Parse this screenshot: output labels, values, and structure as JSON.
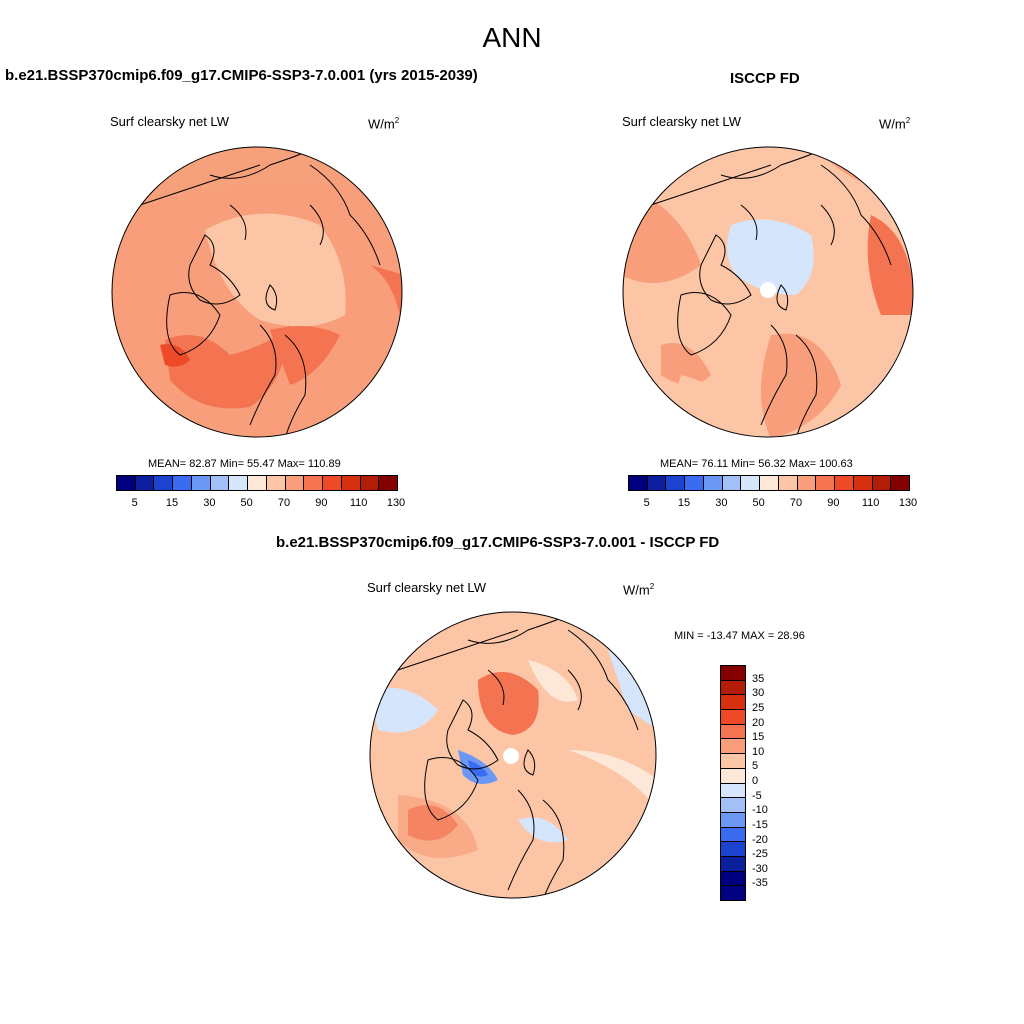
{
  "figure_title": "ANN",
  "panels": {
    "left": {
      "title": "b.e21.BSSP370cmip6.f09_g17.CMIP6-SSP3-7.0.001 (yrs 2015-2039)",
      "variable": "Surf clearsky net LW",
      "units_base": "W/m",
      "units_exp": "2",
      "stats": "MEAN=  82.87  Min=  55.47  Max= 110.89"
    },
    "right": {
      "title": "ISCCP FD",
      "variable": "Surf clearsky net LW",
      "units_base": "W/m",
      "units_exp": "2",
      "stats": "MEAN=  76.11  Min=  56.32  Max= 100.63"
    },
    "diff": {
      "title": "b.e21.BSSP370cmip6.f09_g17.CMIP6-SSP3-7.0.001 - ISCCP FD",
      "variable": "Surf clearsky net LW",
      "units_base": "W/m",
      "units_exp": "2",
      "stats": "MIN = -13.47 MAX =  28.96"
    }
  },
  "colorbars": {
    "abs_ticks": [
      "5",
      "15",
      "30",
      "50",
      "70",
      "90",
      "110",
      "130"
    ],
    "abs_colors": [
      "#00007f",
      "#0b1f9e",
      "#1c43cf",
      "#3a6cf2",
      "#6c98f5",
      "#a3bff7",
      "#d5e5fb",
      "#fde8d8",
      "#fbc5a6",
      "#f89e7a",
      "#f47452",
      "#ef4a28",
      "#d6300f",
      "#b31d07",
      "#840000"
    ],
    "diff_ticks": [
      "35",
      "30",
      "25",
      "20",
      "15",
      "10",
      "5",
      "0",
      "-5",
      "-10",
      "-15",
      "-20",
      "-25",
      "-30",
      "-35"
    ],
    "diff_colors": [
      "#840000",
      "#b31d07",
      "#d6300f",
      "#ef4a28",
      "#f47452",
      "#f89e7a",
      "#fbc5a6",
      "#fde8d8",
      "#d5e5fb",
      "#a3bff7",
      "#6c98f5",
      "#3a6cf2",
      "#1c43cf",
      "#0b1f9e",
      "#00007f",
      "#000080"
    ]
  }
}
